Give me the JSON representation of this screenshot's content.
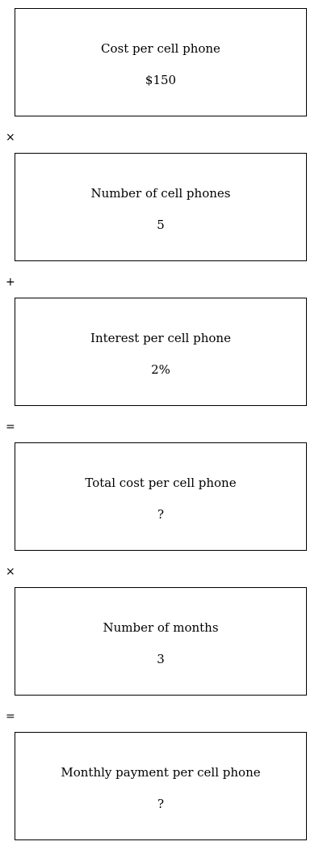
{
  "steps": [
    {
      "label": "Cost per cell phone",
      "value": "$150"
    },
    {
      "label": "Number of cell phones",
      "value": "5"
    },
    {
      "label": "Interest per cell phone",
      "value": "2%"
    },
    {
      "label": "Total cost per cell phone",
      "value": "?"
    },
    {
      "label": "Number of months",
      "value": "3"
    },
    {
      "label": "Monthly payment per cell phone",
      "value": "?"
    }
  ],
  "operators": [
    "×",
    "+",
    "=",
    "×",
    "="
  ]
}
